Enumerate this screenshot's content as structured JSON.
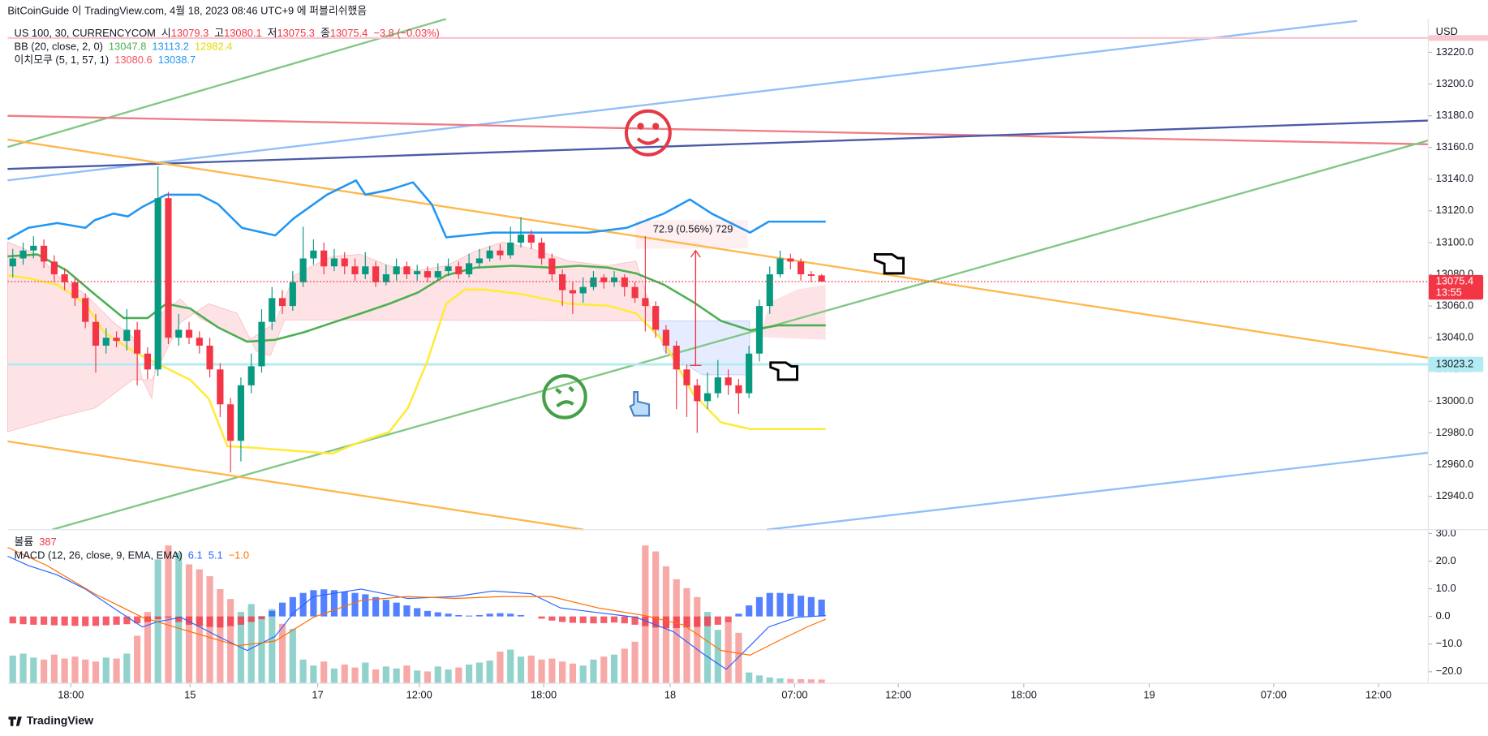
{
  "header": {
    "publisher": "BitCoinGuide 이 TradingView.com, 4월 18, 2023 08:46 UTC+9 에 퍼블리쉬했음",
    "footer": "TradingView"
  },
  "chart_data": [
    {
      "type": "candlestick",
      "symbol": "US 100, 30, CURRENCYCOM",
      "ohlc_legend": [
        {
          "label": "시",
          "value": 13079.3
        },
        {
          "label": "고",
          "value": 13080.1
        },
        {
          "label": "저",
          "value": 13075.3
        },
        {
          "label": "종",
          "value": 13075.4
        }
      ],
      "change": "−3.8 (−0.03%)",
      "currency": "USD",
      "up_color": "#089981",
      "down_color": "#f23645",
      "open": [
        13085,
        13090,
        13095,
        13098,
        13088,
        13080,
        13075,
        13065,
        13050,
        13035,
        13040,
        13038,
        13045,
        13030,
        13020,
        13128,
        13040,
        13045,
        13040,
        13035,
        13020,
        12998,
        12975,
        13010,
        13022,
        13050,
        13065,
        13060,
        13075,
        13090,
        13095,
        13085,
        13090,
        13085,
        13080,
        13085,
        13075,
        13080,
        13085,
        13080,
        13082,
        13078,
        13082,
        13085,
        13080,
        13087,
        13090,
        13095,
        13092,
        13100,
        13105,
        13100,
        13090,
        13080,
        13070,
        13068,
        13072,
        13078,
        13075,
        13078,
        13072,
        13065,
        13060,
        13045,
        13035,
        13020,
        13010,
        13000,
        13005,
        13015,
        13010,
        13005,
        13030,
        13060,
        13080,
        13090,
        13088,
        13080,
        13079.3
      ],
      "high": [
        13096,
        13100,
        13104,
        13102,
        13092,
        13084,
        13078,
        13068,
        13055,
        13046,
        13044,
        13058,
        13050,
        13034,
        13148,
        13132,
        13055,
        13050,
        13044,
        13040,
        13024,
        13002,
        13015,
        13030,
        13058,
        13072,
        13070,
        13082,
        13110,
        13102,
        13100,
        13096,
        13094,
        13090,
        13094,
        13088,
        13086,
        13090,
        13088,
        13086,
        13085,
        13087,
        13090,
        13088,
        13093,
        13096,
        13098,
        13099,
        13110,
        13116,
        13108,
        13103,
        13093,
        13083,
        13075,
        13078,
        13082,
        13080,
        13082,
        13080,
        13075,
        13104,
        13063,
        13048,
        13038,
        13023,
        13014,
        13018,
        13026,
        13020,
        13014,
        13035,
        13064,
        13085,
        13095,
        13093,
        13090,
        13082,
        13080.1
      ],
      "low": [
        13078,
        13086,
        13090,
        13084,
        13075,
        13070,
        13060,
        13046,
        13018,
        13030,
        13034,
        13032,
        13010,
        13014,
        13016,
        13036,
        13035,
        13036,
        13030,
        13015,
        12990,
        12955,
        12962,
        13005,
        13018,
        13045,
        13055,
        13057,
        13072,
        13086,
        13080,
        13082,
        13080,
        13076,
        13077,
        13072,
        13073,
        13076,
        13077,
        13076,
        13075,
        13076,
        13079,
        13077,
        13078,
        13084,
        13088,
        13089,
        13090,
        13097,
        13096,
        13086,
        13076,
        13060,
        13055,
        13062,
        13070,
        13071,
        13072,
        13066,
        13062,
        13044,
        13040,
        13030,
        12995,
        12990,
        12980,
        12995,
        13002,
        13004,
        12992,
        13002,
        13025,
        13055,
        13078,
        13083,
        13076,
        13075,
        13075.3
      ],
      "close": [
        13090,
        13095,
        13098,
        13088,
        13080,
        13075,
        13065,
        13050,
        13035,
        13040,
        13038,
        13045,
        13030,
        13020,
        13128,
        13040,
        13045,
        13040,
        13035,
        13020,
        12998,
        12975,
        13010,
        13022,
        13050,
        13065,
        13060,
        13075,
        13090,
        13095,
        13085,
        13090,
        13085,
        13080,
        13085,
        13075,
        13080,
        13085,
        13080,
        13082,
        13078,
        13082,
        13085,
        13080,
        13087,
        13090,
        13095,
        13092,
        13100,
        13105,
        13100,
        13090,
        13080,
        13070,
        13068,
        13072,
        13078,
        13075,
        13078,
        13072,
        13065,
        13060,
        13045,
        13035,
        13020,
        13010,
        13000,
        13005,
        13015,
        13010,
        13005,
        13030,
        13060,
        13080,
        13090,
        13088,
        13080,
        13079,
        13075.4
      ],
      "indicators": [
        {
          "name": "BB (20, close, 2, 0)",
          "values": [
            13047.8,
            13113.2,
            12982.4
          ],
          "colors": [
            "#4caf50",
            "#2196f3",
            "#e6d800"
          ]
        },
        {
          "name": "이치모쿠 (5, 1, 57, 1)",
          "values": [
            13080.6,
            13038.7
          ],
          "colors": [
            "#f7525f",
            "#2196f3"
          ]
        }
      ],
      "lines": [
        {
          "color": "#2196f3",
          "x": [
            -0.5,
            1.5,
            4.3,
            7,
            7.9,
            9.7,
            11.1,
            12.5,
            14.8,
            18,
            19.8,
            22.1,
            25.3,
            27.1,
            30.3,
            33.1,
            34,
            36.3,
            38.6,
            40.4,
            41.8,
            46.3,
            50,
            55.5,
            59.2,
            62.8,
            65.3,
            67.4,
            71.1,
            72.9,
            78.4
          ],
          "values": [
            13102.1,
            13109.3,
            13112.3,
            13109.3,
            13114.1,
            13118.3,
            13116.5,
            13122.5,
            13130.2,
            13130.2,
            13124.2,
            13109.3,
            13104.5,
            13115.3,
            13130.2,
            13139.2,
            13130.2,
            13133.2,
            13138,
            13124.2,
            13103.3,
            13106.3,
            13106.3,
            13106.3,
            13109.3,
            13118.3,
            13127.2,
            13118.3,
            13106.3,
            13113.2,
            13113.2
          ]
        },
        {
          "color": "#4caf50",
          "x": [
            -0.5,
            2.4,
            5.2,
            7.9,
            10.7,
            13,
            14.8,
            17.1,
            19.8,
            22.6,
            25.3,
            28.1,
            30.8,
            33.6,
            36.3,
            39.1,
            41.8,
            44.6,
            48.2,
            51.9,
            54.6,
            57.4,
            60.1,
            62.8,
            65.6,
            68.3,
            71.1,
            73.8,
            78.4
          ],
          "values": [
            13091.3,
            13092.5,
            13082.4,
            13067.4,
            13052.4,
            13052.4,
            13061.4,
            13058.4,
            13046.5,
            13037.5,
            13038.7,
            13043.5,
            13049.4,
            13055.4,
            13061.4,
            13068.6,
            13079.4,
            13084.2,
            13085.4,
            13084.2,
            13085.4,
            13084.2,
            13080.6,
            13073.4,
            13062.6,
            13050.6,
            13044.7,
            13047.8,
            13047.8
          ]
        },
        {
          "color": "#ffeb3b",
          "x": [
            -0.5,
            1.5,
            4.3,
            7,
            8.8,
            11.6,
            14.3,
            17.1,
            18.9,
            20.7,
            23.5,
            27.1,
            30.8,
            33.6,
            36.3,
            38.1,
            40,
            41.8,
            43.6,
            45.5,
            49.1,
            53.7,
            57.4,
            60.1,
            62.8,
            65.6,
            68.3,
            71.1,
            74.7,
            78.4
          ],
          "values": [
            13079.4,
            13077.6,
            13073.4,
            13061.4,
            13043.5,
            13031.5,
            13022.5,
            13013.5,
            13001.6,
            12971.6,
            12970.5,
            12968.7,
            12966.9,
            12974.6,
            12980.6,
            12995.6,
            13025.5,
            13061.4,
            13070.4,
            13070.4,
            13067.4,
            13061.4,
            13060.2,
            13055.4,
            13037.5,
            13004.6,
            12986.6,
            12982.4,
            12982.4,
            12982.4
          ]
        }
      ],
      "hline": {
        "value": 13023.2,
        "color": "#b2ebf2"
      },
      "last_price": {
        "value": 13075.4,
        "countdown": "13:55",
        "color": "#f23645"
      },
      "annotation": "72.9 (0.56%) 729",
      "xlim": [
        -0.5,
        136.5
      ],
      "xticks": [
        {
          "value": 5.6,
          "label": "18:00"
        },
        {
          "value": 17.1,
          "label": "15"
        },
        {
          "value": 29.4,
          "label": "17"
        },
        {
          "value": 39.2,
          "label": "12:00"
        },
        {
          "value": 51.2,
          "label": "18:00"
        },
        {
          "value": 63.4,
          "label": "18"
        },
        {
          "value": 75.4,
          "label": "07:00"
        },
        {
          "value": 85.4,
          "label": "12:00"
        },
        {
          "value": 97.5,
          "label": "18:00"
        },
        {
          "value": 109.6,
          "label": "19"
        },
        {
          "value": 121.6,
          "label": "07:00"
        },
        {
          "value": 131.7,
          "label": "12:00"
        }
      ],
      "ylim": [
        12919,
        13241
      ],
      "yticks": [
        {
          "value": 13220,
          "label": "13220.0"
        },
        {
          "value": 13200,
          "label": "13200.0"
        },
        {
          "value": 13180,
          "label": "13180.0"
        },
        {
          "value": 13160,
          "label": "13160.0"
        },
        {
          "value": 13140,
          "label": "13140.0"
        },
        {
          "value": 13120,
          "label": "13120.0"
        },
        {
          "value": 13100,
          "label": "13100.0"
        },
        {
          "value": 13080,
          "label": "13080.0"
        },
        {
          "value": 13060,
          "label": "13060.0"
        },
        {
          "value": 13040,
          "label": "13040.0"
        },
        {
          "value": 13020,
          "label": "13020.0"
        },
        {
          "value": 13000,
          "label": "13000.0"
        },
        {
          "value": 12980,
          "label": "12980.0"
        },
        {
          "value": 12960,
          "label": "12960.0"
        },
        {
          "value": 12940,
          "label": "12940.0"
        }
      ]
    },
    {
      "type": "macd",
      "volume_name": "볼륨",
      "volume_value": 387,
      "volume_colors": [
        "#92d2cc",
        "#f7a9a7"
      ],
      "volume": [
        2800,
        3000,
        2600,
        2400,
        2900,
        2500,
        2700,
        2400,
        2200,
        2600,
        2500,
        3000,
        4800,
        7200,
        12500,
        13900,
        13200,
        12000,
        11500,
        10800,
        9500,
        8500,
        7200,
        8000,
        6800,
        7500,
        6000,
        5500,
        2400,
        1800,
        2200,
        1500,
        1900,
        1600,
        2100,
        1400,
        1700,
        1500,
        1800,
        1300,
        1200,
        1700,
        1400,
        1600,
        1900,
        2100,
        2300,
        3200,
        3400,
        2700,
        2800,
        2400,
        2500,
        2200,
        2000,
        1800,
        2400,
        2700,
        2900,
        3500,
        4200,
        13900,
        13300,
        11800,
        10500,
        9600,
        8700,
        7200,
        5400,
        6300,
        5100,
        1100,
        800,
        600,
        500,
        450,
        420,
        400,
        387
      ],
      "volume_lim": [
        0,
        15500
      ],
      "name": "MACD (12, 26, close, 9, EMA, EMA)",
      "legend_values": [
        {
          "value": 6.1,
          "color": "#2962ff"
        },
        {
          "value": 5.1,
          "color": "#2962ff"
        },
        {
          "value": -1.0,
          "label": "−1.0",
          "color": "#ff6d00"
        }
      ],
      "histogram_colors": [
        "#2962ff",
        "#f23645"
      ],
      "histogram": [
        -2.5,
        -2.8,
        -3,
        -3,
        -3.2,
        -3.3,
        -3.4,
        -3.5,
        -3.4,
        -3.2,
        -3,
        -2.8,
        -2.5,
        -2,
        -1,
        -0.5,
        -2,
        -3,
        -3.5,
        -3.8,
        -4,
        -3.5,
        -3,
        -2,
        -1,
        2,
        5,
        7,
        8.5,
        9.5,
        9.8,
        9.5,
        9,
        8.5,
        8,
        7,
        6,
        5,
        4,
        3,
        2,
        1.5,
        1,
        0.5,
        0.3,
        0.5,
        1,
        1.2,
        1,
        0.5,
        0,
        -0.8,
        -1.5,
        -2,
        -2.3,
        -2.4,
        -2.5,
        -2.4,
        -2.2,
        -2.5,
        -3,
        -3.5,
        -4,
        -4.2,
        -4.2,
        -4,
        -3.8,
        -3.5,
        -3,
        -2,
        1,
        4,
        7,
        8.5,
        8.5,
        8.2,
        7.5,
        7,
        6.1
      ],
      "lines": [
        {
          "color": "#2962ff",
          "x": [
            -0.5,
            1.5,
            4.3,
            7,
            9.7,
            12.5,
            13.9,
            16.2,
            19.8,
            22.6,
            25.3,
            27.1,
            29,
            33.6,
            38.1,
            42.7,
            46.3,
            50,
            52.8,
            56.4,
            60.1,
            63.7,
            66.5,
            68.8,
            71.1,
            72.9,
            75.6,
            78.4
          ],
          "values": [
            21.8,
            18.4,
            15,
            9.9,
            3.1,
            -3.8,
            -2,
            -0.3,
            -7.2,
            -12.3,
            -7.2,
            1.4,
            7.2,
            9.9,
            6.5,
            7.2,
            9.2,
            8.2,
            3.1,
            1.4,
            -0.3,
            -5.5,
            -13.3,
            -19.1,
            -10.6,
            -3.8,
            -0.3,
            0.3
          ]
        },
        {
          "color": "#ff6d00",
          "x": [
            -0.5,
            3.3,
            7.9,
            12.5,
            17.1,
            21.7,
            25.3,
            29,
            33.6,
            38.1,
            42.7,
            47.3,
            51.9,
            56.4,
            61,
            64.7,
            68.3,
            71.1,
            73.8,
            76.6,
            78.4
          ],
          "values": [
            25,
            18.4,
            8.2,
            -0.3,
            -5.5,
            -10.6,
            -8.9,
            -0.3,
            5.8,
            7.2,
            6.5,
            7.2,
            7.2,
            3.1,
            0.3,
            -3.1,
            -12.3,
            -14,
            -8.9,
            -3.8,
            -1
          ]
        }
      ],
      "ylim": [
        -24.2,
        31.4
      ],
      "yticks": [
        {
          "value": 30,
          "label": "30.0"
        },
        {
          "value": 20,
          "label": "20.0"
        },
        {
          "value": 10,
          "label": "10.0"
        },
        {
          "value": 0,
          "label": "0.0"
        },
        {
          "value": -10,
          "label": "−10.0"
        },
        {
          "value": -20,
          "label": "−20.0"
        }
      ]
    }
  ]
}
